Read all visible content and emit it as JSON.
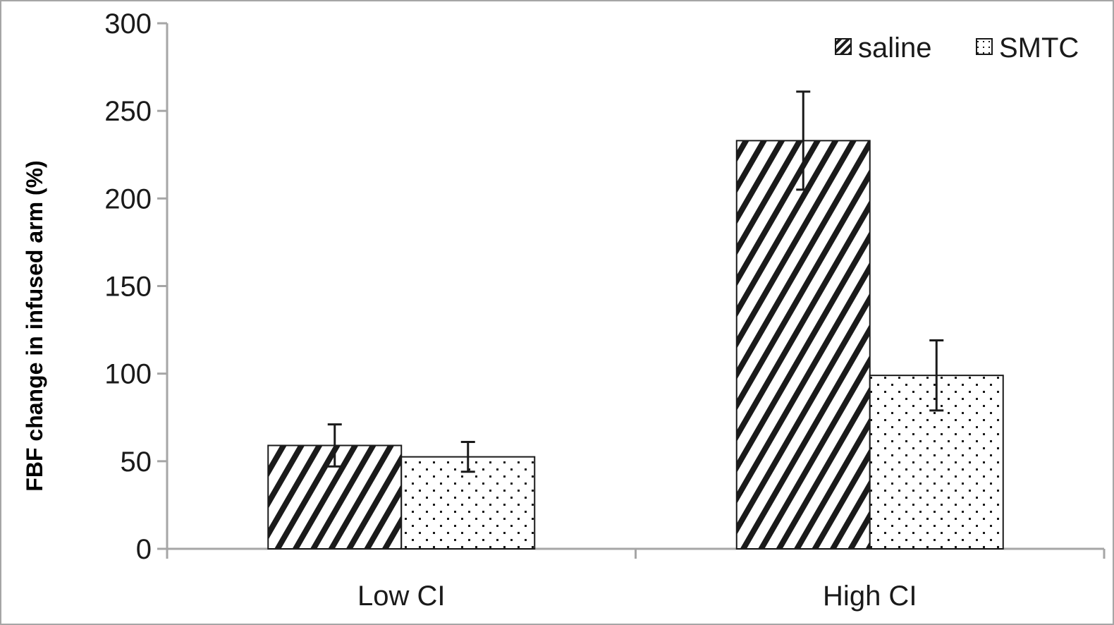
{
  "chart_data": {
    "type": "bar",
    "categories": [
      "Low CI",
      "High CI"
    ],
    "series": [
      {
        "name": "saline",
        "values": [
          59,
          233
        ],
        "error": [
          12,
          28
        ],
        "pattern": "diagonal-hatch"
      },
      {
        "name": "SMTC",
        "values": [
          52.5,
          99
        ],
        "error": [
          8.5,
          20
        ],
        "pattern": "dots"
      }
    ],
    "title": "",
    "xlabel": "",
    "ylabel": "FBF change in infused arm (%)",
    "ylim": [
      0,
      300
    ],
    "yticks": [
      0,
      50,
      100,
      150,
      200,
      250,
      300
    ],
    "ytick_labels": [
      "0",
      "50",
      "100",
      "150",
      "200",
      "250",
      "300"
    ],
    "grid": false,
    "legend_position": "top-right",
    "colors": {
      "axis": "#a6a6a6",
      "bar_stroke": "#1a1a1a",
      "pattern": "#1a1a1a"
    }
  }
}
